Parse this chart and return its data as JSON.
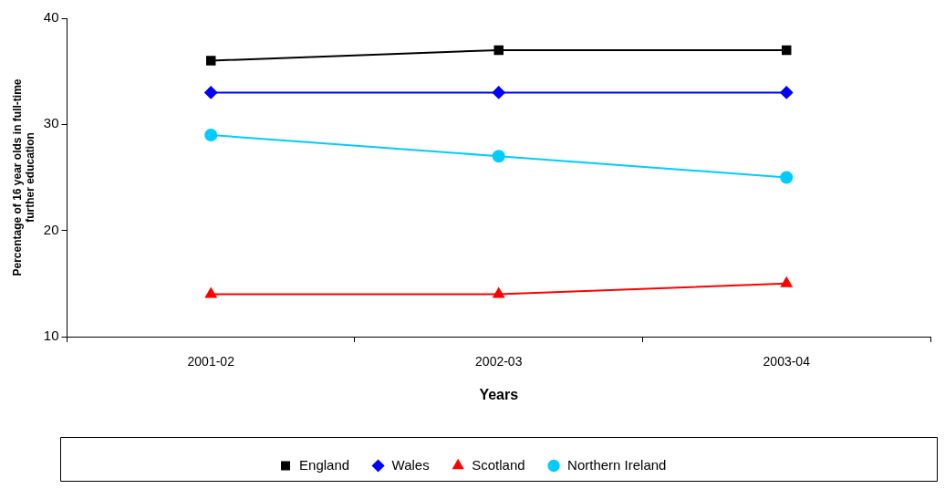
{
  "chart_data": {
    "type": "line",
    "xlabel": "Years",
    "ylabel": "Percentage of 16 year olds in full-time further education",
    "categories": [
      "2001-02",
      "2002-03",
      "2003-04"
    ],
    "series": [
      {
        "name": "England",
        "color": "#000000",
        "marker": "square",
        "values": [
          36,
          37,
          37
        ]
      },
      {
        "name": "Wales",
        "color": "#0000ff",
        "marker": "diamond",
        "values": [
          33,
          33,
          33
        ]
      },
      {
        "name": "Scotland",
        "color": "#ff0000",
        "marker": "triangle",
        "values": [
          14,
          14,
          15
        ]
      },
      {
        "name": "Northern Ireland",
        "color": "#00ccff",
        "marker": "circle",
        "values": [
          29,
          27,
          25
        ]
      }
    ],
    "ylim": [
      10,
      40
    ],
    "yticks": [
      10,
      20,
      30,
      40
    ],
    "grid": false,
    "legend": "bottom"
  }
}
